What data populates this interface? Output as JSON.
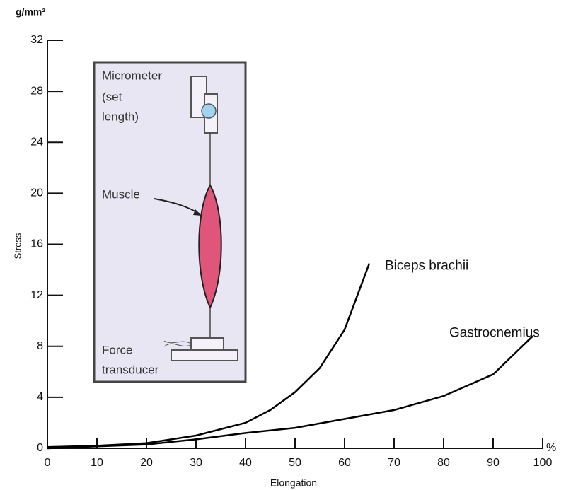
{
  "chart_data": {
    "type": "line",
    "y_unit": "g/mm²",
    "x_unit": "%",
    "y_label": "Stress",
    "x_label": "Elongation",
    "xlim": [
      0,
      100
    ],
    "xticks": [
      0,
      10,
      20,
      30,
      40,
      50,
      60,
      70,
      80,
      90,
      100
    ],
    "ylim": [
      0,
      32
    ],
    "yticks": [
      0,
      4,
      8,
      12,
      16,
      20,
      24,
      28,
      32
    ],
    "series": [
      {
        "name": "Biceps brachii",
        "color": "#000000",
        "x": [
          0,
          10,
          20,
          30,
          40,
          45,
          50,
          55,
          60,
          65
        ],
        "values": [
          0.1,
          0.2,
          0.4,
          1.0,
          2.0,
          3.0,
          4.4,
          6.3,
          9.3,
          14.5
        ]
      },
      {
        "name": "Gastrocnemius",
        "color": "#000000",
        "x": [
          0,
          20,
          30,
          40,
          50,
          60,
          70,
          80,
          90,
          98
        ],
        "values": [
          0,
          0.3,
          0.7,
          1.2,
          1.6,
          2.3,
          3.0,
          4.1,
          5.8,
          8.8
        ]
      }
    ],
    "inset": {
      "micrometer": [
        "Micrometer",
        "(set",
        "length)"
      ],
      "muscle": "Muscle",
      "transducer": [
        "Force",
        "transducer"
      ]
    }
  }
}
